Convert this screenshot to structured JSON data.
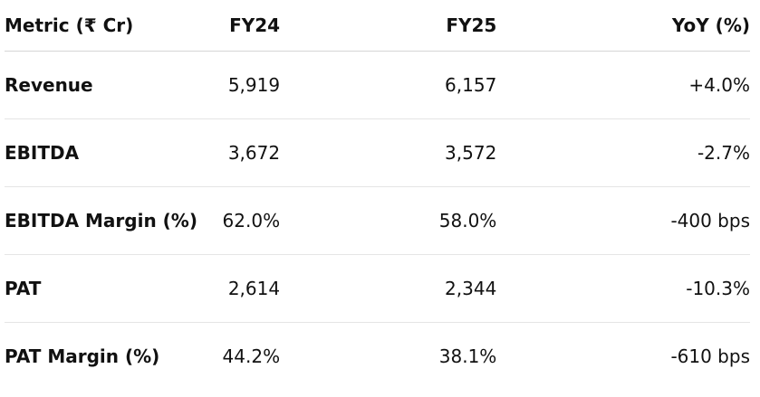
{
  "table": {
    "header": [
      "Metric (₹ Cr)",
      "FY24",
      "FY25",
      "YoY (%)"
    ],
    "rows": [
      [
        "Revenue",
        "5,919",
        "6,157",
        "+4.0%"
      ],
      [
        "EBITDA",
        "3,672",
        "3,572",
        "-2.7%"
      ],
      [
        "EBITDA Margin (%)",
        "62.0%",
        "58.0%",
        "-400 bps"
      ],
      [
        "PAT",
        "2,614",
        "2,344",
        "-10.3%"
      ],
      [
        "PAT Margin (%)",
        "44.2%",
        "38.1%",
        "-610 bps"
      ]
    ]
  }
}
